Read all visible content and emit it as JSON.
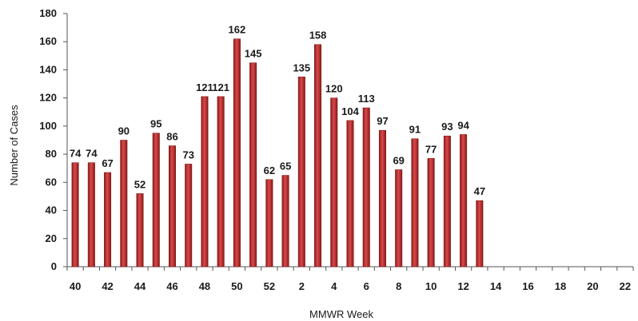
{
  "chart_data": {
    "type": "bar",
    "title": "",
    "xlabel": "MMWR Week",
    "ylabel": "Number of Cases",
    "ylim": [
      0,
      180
    ],
    "y_ticks": [
      0,
      20,
      40,
      60,
      80,
      100,
      120,
      140,
      160,
      180
    ],
    "grid": false,
    "legend": "none",
    "bar_color": "#b52a2a",
    "categories": [
      "40",
      "41",
      "42",
      "43",
      "44",
      "45",
      "46",
      "47",
      "48",
      "49",
      "50",
      "51",
      "52",
      "1",
      "2",
      "3",
      "4",
      "5",
      "6",
      "7",
      "8",
      "9",
      "10",
      "11",
      "12",
      "13",
      "14",
      "15",
      "16",
      "17",
      "18",
      "19",
      "20",
      "21",
      "22"
    ],
    "x_tick_labels": [
      "40",
      "42",
      "44",
      "46",
      "48",
      "50",
      "52",
      "2",
      "4",
      "6",
      "8",
      "10",
      "12",
      "14",
      "16",
      "18",
      "20",
      "22"
    ],
    "values": [
      74,
      74,
      67,
      90,
      52,
      95,
      86,
      73,
      121,
      121,
      162,
      145,
      62,
      65,
      135,
      158,
      120,
      104,
      113,
      97,
      69,
      91,
      77,
      93,
      94,
      47,
      null,
      null,
      null,
      null,
      null,
      null,
      null,
      null,
      null
    ]
  }
}
